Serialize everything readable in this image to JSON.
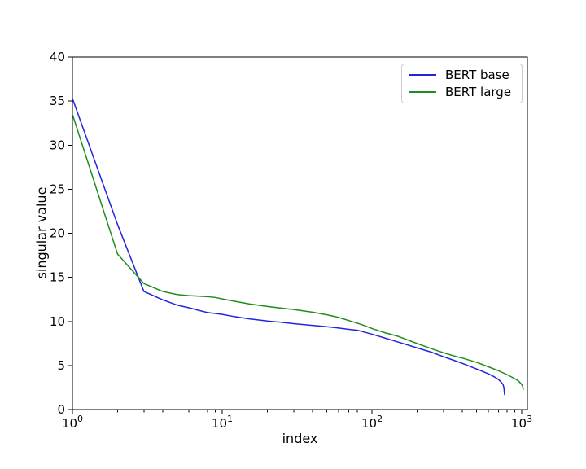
{
  "figure": {
    "background": "#ffffff",
    "frame_color": "#000000",
    "title": ""
  },
  "chart_data": {
    "type": "line",
    "title": "",
    "xlabel": "index",
    "ylabel": "singular value",
    "x_scale": "log",
    "xlim": [
      1,
      1091
    ],
    "ylim": [
      0,
      40
    ],
    "grid": false,
    "y_ticks": [
      0,
      5,
      10,
      15,
      20,
      25,
      30,
      35,
      40
    ],
    "x_major_ticks": [
      1,
      10,
      100,
      1000
    ],
    "x_major_tick_labels": [
      {
        "base": "10",
        "exp": "0"
      },
      {
        "base": "10",
        "exp": "1"
      },
      {
        "base": "10",
        "exp": "2"
      },
      {
        "base": "10",
        "exp": "3"
      }
    ],
    "legend": {
      "position": "upper right",
      "border_color": "#cccccc"
    },
    "series": [
      {
        "name": "BERT base",
        "color": "#2424dd",
        "x": [
          1,
          2,
          3,
          4,
          5,
          6,
          7,
          8,
          9,
          10,
          12,
          15,
          20,
          25,
          30,
          40,
          50,
          60,
          70,
          80,
          100,
          120,
          150,
          200,
          250,
          300,
          350,
          400,
          500,
          600,
          650,
          700,
          730,
          750,
          760,
          768
        ],
        "y": [
          35.3,
          21.0,
          13.4,
          12.45,
          11.85,
          11.55,
          11.25,
          11.0,
          10.9,
          10.8,
          10.55,
          10.3,
          10.05,
          9.9,
          9.75,
          9.55,
          9.4,
          9.25,
          9.1,
          9.0,
          8.55,
          8.15,
          7.65,
          7.0,
          6.5,
          6.0,
          5.6,
          5.25,
          4.6,
          4.05,
          3.75,
          3.4,
          3.1,
          2.85,
          2.5,
          1.7
        ]
      },
      {
        "name": "BERT large",
        "color": "#1e8c1e",
        "x": [
          1,
          2,
          3,
          4,
          5,
          6,
          7,
          8,
          9,
          10,
          12,
          15,
          20,
          25,
          30,
          40,
          50,
          60,
          70,
          80,
          90,
          100,
          120,
          150,
          200,
          250,
          300,
          350,
          400,
          500,
          600,
          700,
          800,
          900,
          950,
          1000,
          1015,
          1024
        ],
        "y": [
          33.5,
          17.65,
          14.3,
          13.4,
          13.05,
          12.92,
          12.86,
          12.8,
          12.72,
          12.55,
          12.3,
          12.0,
          11.7,
          11.5,
          11.35,
          11.05,
          10.75,
          10.45,
          10.1,
          9.8,
          9.5,
          9.2,
          8.75,
          8.3,
          7.5,
          6.9,
          6.45,
          6.1,
          5.85,
          5.35,
          4.85,
          4.4,
          3.95,
          3.5,
          3.25,
          2.85,
          2.6,
          2.3
        ]
      }
    ]
  }
}
